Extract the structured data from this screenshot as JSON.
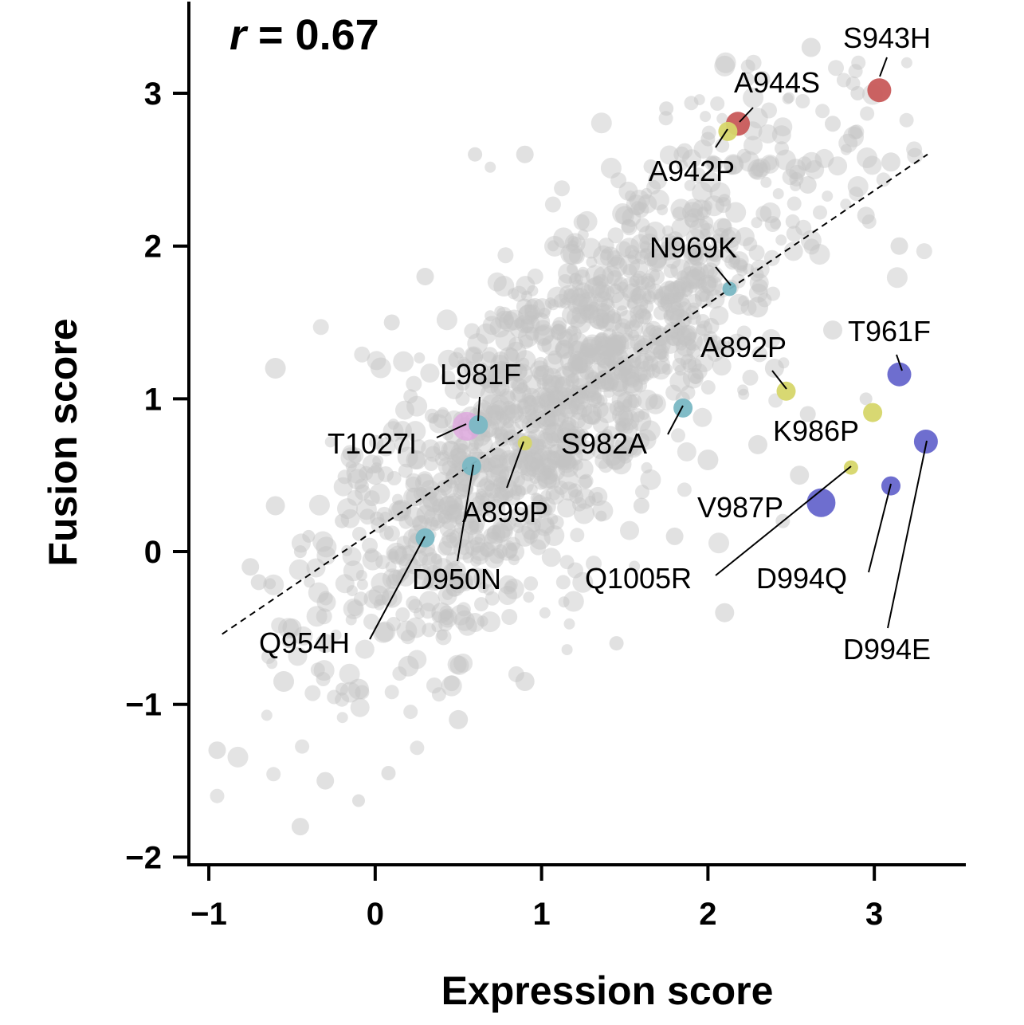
{
  "chart_data": {
    "type": "scatter",
    "title": "",
    "xlabel": "Expression score",
    "ylabel": "Fusion score",
    "xlim": [
      -1.12,
      3.55
    ],
    "ylim": [
      -2.05,
      3.6
    ],
    "xticks": [
      -1,
      0,
      1,
      2,
      3
    ],
    "xtick_labels": [
      "−1",
      "0",
      "1",
      "2",
      "3"
    ],
    "yticks": [
      -2,
      -1,
      0,
      1,
      2,
      3
    ],
    "ytick_labels": [
      "−2",
      "−1",
      "0",
      "1",
      "2",
      "3"
    ],
    "annotation": {
      "prefix": "r",
      "text": " = 0.67"
    },
    "correlation": 0.67,
    "grid": false,
    "legend": "none",
    "fit_line": {
      "x": [
        -0.92,
        3.32
      ],
      "y": [
        -0.54,
        2.6
      ]
    },
    "background_color": "#c4c4c4",
    "background_points": [
      [
        -0.95,
        -1.3
      ],
      [
        -0.45,
        -1.8
      ],
      [
        -0.3,
        -1.5
      ],
      [
        -0.1,
        -1.63
      ],
      [
        0.08,
        -1.45
      ],
      [
        -0.7,
        -0.2
      ],
      [
        -0.75,
        -0.1
      ],
      [
        -0.6,
        0.3
      ],
      [
        -0.5,
        -0.5
      ],
      [
        -0.3,
        -0.6
      ],
      [
        -0.2,
        0.2
      ],
      [
        -0.4,
        0.1
      ],
      [
        -0.55,
        -0.85
      ],
      [
        -0.2,
        -0.9
      ],
      [
        0.9,
        -0.85
      ],
      [
        1.45,
        -0.6
      ],
      [
        2.1,
        -0.4
      ],
      [
        0.5,
        -1.1
      ],
      [
        0.2,
        -0.75
      ],
      [
        0.1,
        -0.3
      ],
      [
        0.0,
        0.5
      ],
      [
        0.3,
        1.8
      ],
      [
        0.1,
        1.5
      ],
      [
        -0.6,
        1.2
      ],
      [
        -0.45,
        0.0
      ],
      [
        0.6,
        2.6
      ],
      [
        0.9,
        2.6
      ],
      [
        1.5,
        2.2
      ],
      [
        2.62,
        3.3
      ],
      [
        2.9,
        3.0
      ],
      [
        2.75,
        2.8
      ],
      [
        1.75,
        2.9
      ],
      [
        2.0,
        2.7
      ],
      [
        2.3,
        2.5
      ],
      [
        2.6,
        2.4
      ],
      [
        3.1,
        2.55
      ],
      [
        2.1,
        2.3
      ],
      [
        2.75,
        1.45
      ],
      [
        2.95,
        1.0
      ],
      [
        2.0,
        0.6
      ],
      [
        2.55,
        0.5
      ],
      [
        1.8,
        0.1
      ],
      [
        2.45,
        0.2
      ],
      [
        1.6,
        0.3
      ],
      [
        1.2,
        0.4
      ],
      [
        0.9,
        0.1
      ],
      [
        0.4,
        -0.4
      ],
      [
        -0.1,
        -0.9
      ],
      [
        2.95,
        2.2
      ],
      [
        3.15,
        2.0
      ],
      [
        2.3,
        1.6
      ],
      [
        2.4,
        1.2
      ],
      [
        2.6,
        0.9
      ],
      [
        2.3,
        0.7
      ]
    ],
    "points": [
      {
        "label": "S943H",
        "x": 3.03,
        "y": 3.02,
        "color": "#c85a5a",
        "size": "large"
      },
      {
        "label": "A944S",
        "x": 2.18,
        "y": 2.8,
        "color": "#c85a5a",
        "size": "large"
      },
      {
        "label": "A942P",
        "x": 2.12,
        "y": 2.75,
        "color": "#d6d66a",
        "size": "medium"
      },
      {
        "label": "N969K",
        "x": 2.13,
        "y": 1.72,
        "color": "#7ab8c4",
        "size": "small"
      },
      {
        "label": "A892P",
        "x": 2.47,
        "y": 1.05,
        "color": "#d6d66a",
        "size": "medium"
      },
      {
        "label": "T961F",
        "x": 3.15,
        "y": 1.16,
        "color": "#6666cc",
        "size": "large"
      },
      {
        "label": "K986P",
        "x": 2.99,
        "y": 0.91,
        "color": "#d6d66a",
        "size": "medium"
      },
      {
        "label": "S982A",
        "x": 1.85,
        "y": 0.94,
        "color": "#7ab8c4",
        "size": "medium"
      },
      {
        "label": "L981F",
        "x": 0.62,
        "y": 0.83,
        "color": "#7ab8c4",
        "size": "medium"
      },
      {
        "label": "T1027I",
        "x": 0.55,
        "y": 0.82,
        "color": "#e0a0e0",
        "size": "xlarge"
      },
      {
        "label": "A899P",
        "x": 0.9,
        "y": 0.71,
        "color": "#d6d66a",
        "size": "small"
      },
      {
        "label": "D950N",
        "x": 0.58,
        "y": 0.56,
        "color": "#7ab8c4",
        "size": "medium"
      },
      {
        "label": "Q954H",
        "x": 0.3,
        "y": 0.09,
        "color": "#7ab8c4",
        "size": "medium"
      },
      {
        "label": "D994E",
        "x": 3.31,
        "y": 0.72,
        "color": "#6666cc",
        "size": "large"
      },
      {
        "label": "Q1005R",
        "x": 2.86,
        "y": 0.55,
        "color": "#d6d66a",
        "size": "small"
      },
      {
        "label": "V987P",
        "x": 2.68,
        "y": 0.32,
        "color": "#6666cc",
        "size": "xlarge"
      },
      {
        "label": "D994Q",
        "x": 3.1,
        "y": 0.43,
        "color": "#6666cc",
        "size": "medium"
      }
    ]
  }
}
